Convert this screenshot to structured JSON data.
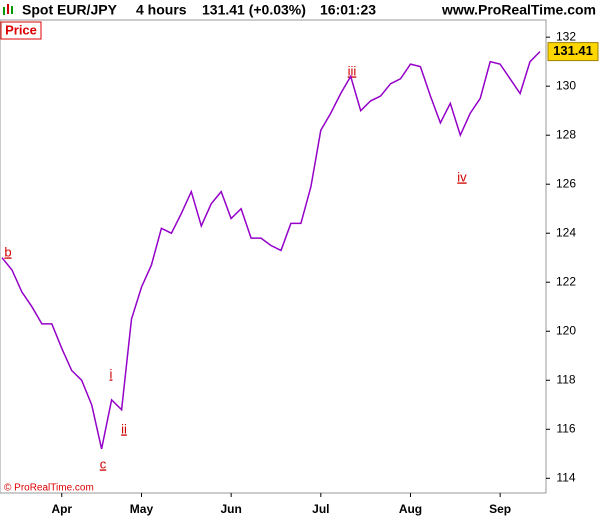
{
  "header": {
    "symbol": "Spot EUR/JPY",
    "period": "4 hours",
    "quote": "131.41 (+0.03%)",
    "time": "16:01:23",
    "site": "www.ProRealTime.com"
  },
  "chart_data": {
    "type": "line",
    "panel_label": "Price",
    "copyright": "© ProRealTime.com",
    "last_label": "131.41",
    "annotations": [
      "b",
      "c",
      "i",
      "ii",
      "iii",
      "iv"
    ],
    "categories": [
      null,
      null,
      null,
      null,
      null,
      null,
      "Apr",
      null,
      null,
      null,
      null,
      null,
      null,
      null,
      "May",
      null,
      null,
      null,
      null,
      null,
      null,
      null,
      null,
      "Jun",
      null,
      null,
      null,
      null,
      null,
      null,
      null,
      null,
      "Jul",
      null,
      null,
      null,
      null,
      null,
      null,
      null,
      null,
      "Aug",
      null,
      null,
      null,
      null,
      null,
      null,
      null,
      null,
      "Sep",
      null,
      null,
      null,
      null
    ],
    "values": [
      123.0,
      122.5,
      121.6,
      121.0,
      120.3,
      120.3,
      119.3,
      118.4,
      118.0,
      117.0,
      115.2,
      117.2,
      116.8,
      120.5,
      121.8,
      122.7,
      124.2,
      124.0,
      124.8,
      125.7,
      124.3,
      125.2,
      125.7,
      124.6,
      125.0,
      123.8,
      123.8,
      123.5,
      123.3,
      124.4,
      124.4,
      125.9,
      128.2,
      128.9,
      129.7,
      130.4,
      129.0,
      129.4,
      129.6,
      130.1,
      130.3,
      130.9,
      130.8,
      129.6,
      128.5,
      129.3,
      128.0,
      128.9,
      129.5,
      131.0,
      130.9,
      130.3,
      129.7,
      131.0,
      131.41
    ],
    "color": "#9400c8",
    "ylim": [
      113.4,
      132.7
    ],
    "yticks": [
      114,
      116,
      118,
      120,
      122,
      124,
      126,
      128,
      130,
      132
    ]
  }
}
